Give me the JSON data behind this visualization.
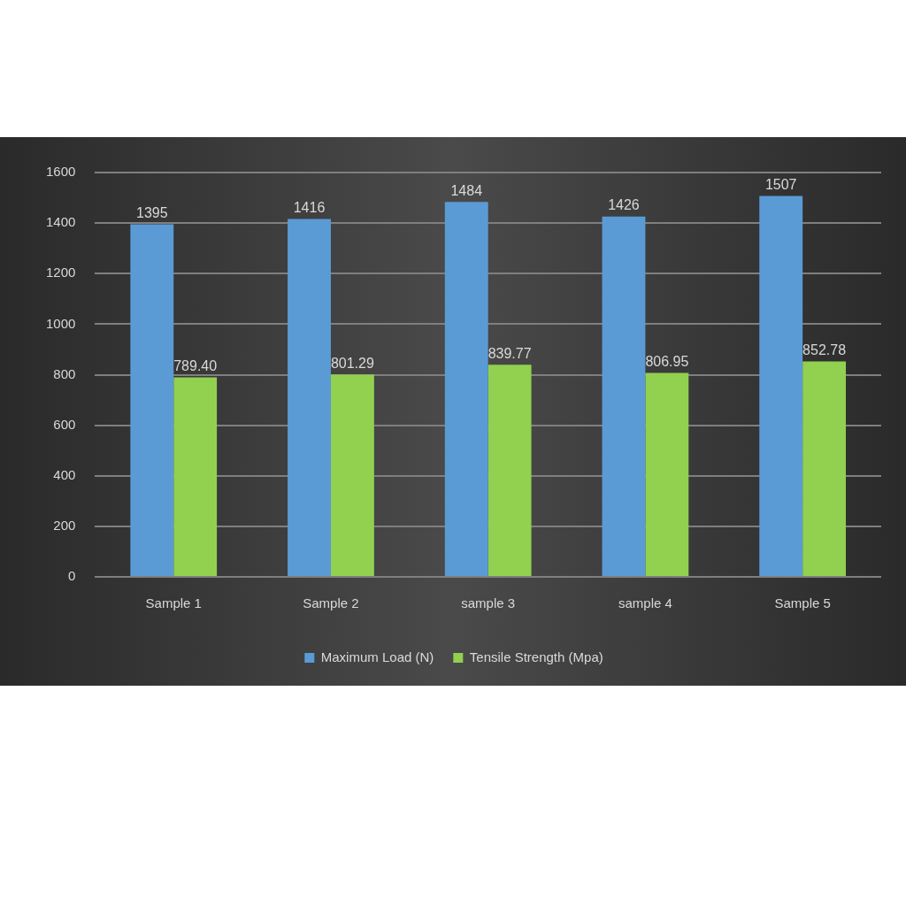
{
  "chart_data": {
    "type": "bar",
    "categories": [
      "Sample 1",
      "Sample 2",
      "sample 3",
      "sample 4",
      "Sample 5"
    ],
    "series": [
      {
        "name": "Maximum Load (N)",
        "color": "#5b9bd5",
        "values": [
          1395,
          1416,
          1484,
          1426,
          1507
        ],
        "value_labels": [
          "1395",
          "1416",
          "1484",
          "1426",
          "1507"
        ]
      },
      {
        "name": "Tensile Strength (Mpa)",
        "color": "#92d050",
        "values": [
          789.4,
          801.29,
          839.77,
          806.95,
          852.78
        ],
        "value_labels": [
          "789.40",
          "801.29",
          "839.77",
          "806.95",
          "852.78"
        ]
      }
    ],
    "ylim": [
      0,
      1600
    ],
    "yticks": [
      0,
      200,
      400,
      600,
      800,
      1000,
      1200,
      1400,
      1600
    ],
    "grid": "y",
    "legend": "bottom"
  }
}
